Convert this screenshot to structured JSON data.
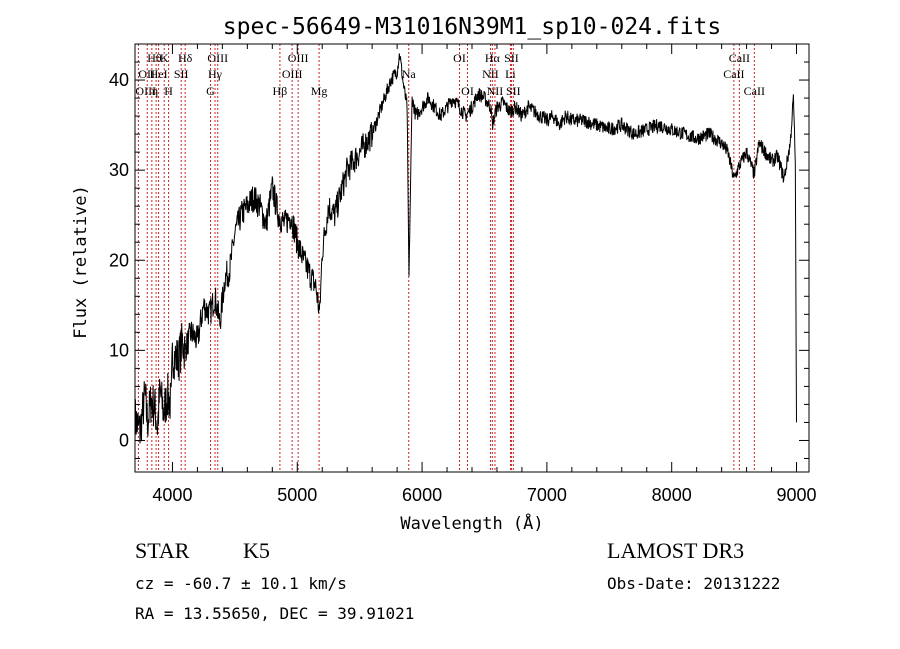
{
  "chart_data": {
    "type": "line",
    "title": "spec-56649-M31016N39M1_sp10-024.fits",
    "xlabel": "Wavelength (Å)",
    "ylabel": "Flux (relative)",
    "xlim": [
      3700,
      9100
    ],
    "ylim": [
      -3.5,
      44
    ],
    "xticks": [
      4000,
      5000,
      6000,
      7000,
      8000,
      9000
    ],
    "yticks": [
      0,
      10,
      20,
      30,
      40
    ],
    "series": [
      {
        "name": "flux",
        "x": [
          3700,
          3740,
          3780,
          3800,
          3830,
          3860,
          3880,
          3900,
          3930,
          3960,
          3990,
          4000,
          4050,
          4080,
          4100,
          4150,
          4200,
          4250,
          4300,
          4340,
          4380,
          4420,
          4460,
          4500,
          4550,
          4600,
          4650,
          4700,
          4750,
          4800,
          4850,
          4900,
          4950,
          5000,
          5050,
          5100,
          5150,
          5180,
          5200,
          5250,
          5300,
          5400,
          5500,
          5600,
          5700,
          5750,
          5800,
          5820,
          5850,
          5880,
          5895,
          5920,
          5950,
          6000,
          6050,
          6100,
          6150,
          6200,
          6250,
          6300,
          6350,
          6400,
          6450,
          6500,
          6550,
          6563,
          6600,
          6650,
          6700,
          6750,
          6800,
          6850,
          6900,
          6950,
          7000,
          7050,
          7100,
          7150,
          7200,
          7300,
          7400,
          7500,
          7600,
          7700,
          7800,
          7900,
          8000,
          8100,
          8200,
          8300,
          8400,
          8450,
          8498,
          8542,
          8600,
          8662,
          8700,
          8750,
          8800,
          8850,
          8900,
          8950,
          8975,
          8990,
          9000
        ],
        "values": [
          2.5,
          1.0,
          5.0,
          2.0,
          4.5,
          3.5,
          1.5,
          5.5,
          3.0,
          5.0,
          4.0,
          9.5,
          9.0,
          11.0,
          10.0,
          12.0,
          11.0,
          15.0,
          14.0,
          16.0,
          13.0,
          18.0,
          19.0,
          23.0,
          25.0,
          26.0,
          27.0,
          26.0,
          24.0,
          28.0,
          25.0,
          24.0,
          25.0,
          22.0,
          20.0,
          18.5,
          17.0,
          14.0,
          21.0,
          26.0,
          25.0,
          30.0,
          32.0,
          34.0,
          38.0,
          40.0,
          41.0,
          43.0,
          39.5,
          37.0,
          18.0,
          38.0,
          36.0,
          37.0,
          38.0,
          37.0,
          36.0,
          37.0,
          38.0,
          37.0,
          36.0,
          37.0,
          38.5,
          38.0,
          37.0,
          35.0,
          37.0,
          37.5,
          36.5,
          37.0,
          36.0,
          37.0,
          36.5,
          36.0,
          35.5,
          36.0,
          35.0,
          36.0,
          35.5,
          35.5,
          35.0,
          34.5,
          35.0,
          34.0,
          34.5,
          35.0,
          34.5,
          34.0,
          33.5,
          34.0,
          33.0,
          32.0,
          29.0,
          30.5,
          32.0,
          29.5,
          33.0,
          32.0,
          31.0,
          31.5,
          29.0,
          33.0,
          38.0,
          31.0,
          2.0
        ]
      }
    ],
    "line_annotations": [
      {
        "label": "Hθ",
        "x": 3798,
        "row": 0,
        "side": "right"
      },
      {
        "label": "OII",
        "x": 3727,
        "row": 1,
        "side": "right"
      },
      {
        "label": "OIII",
        "x": 3869,
        "row": 2,
        "side": "left"
      },
      {
        "label": "HeI",
        "x": 3889,
        "row": 1,
        "side": "center"
      },
      {
        "label": "η",
        "x": 3835,
        "row": 2,
        "side": "right"
      },
      {
        "label": "K",
        "x": 3934,
        "row": 0,
        "side": "center"
      },
      {
        "label": "H",
        "x": 3969,
        "row": 2,
        "side": "center"
      },
      {
        "label": "SII",
        "x": 4070,
        "row": 1,
        "side": "center"
      },
      {
        "label": "Hδ",
        "x": 4102,
        "row": 0,
        "side": "center"
      },
      {
        "label": "OIII",
        "x": 4363,
        "row": 0,
        "side": "center"
      },
      {
        "label": "Hγ",
        "x": 4341,
        "row": 1,
        "side": "center"
      },
      {
        "label": "G",
        "x": 4305,
        "row": 2,
        "side": "center"
      },
      {
        "label": "Hβ",
        "x": 4861,
        "row": 2,
        "side": "center"
      },
      {
        "label": "OIII",
        "x": 5007,
        "row": 0,
        "side": "center"
      },
      {
        "label": "OIII",
        "x": 4959,
        "row": 1,
        "side": "center"
      },
      {
        "label": "Mg",
        "x": 5175,
        "row": 2,
        "side": "center"
      },
      {
        "label": "Na",
        "x": 5893,
        "row": 1,
        "side": "center"
      },
      {
        "label": "OI",
        "x": 6300,
        "row": 0,
        "side": "center"
      },
      {
        "label": "OI",
        "x": 6364,
        "row": 2,
        "side": "center"
      },
      {
        "label": "Hα",
        "x": 6563,
        "row": 0,
        "side": "center"
      },
      {
        "label": "SII",
        "x": 6716,
        "row": 0,
        "side": "center"
      },
      {
        "label": "NII",
        "x": 6548,
        "row": 1,
        "side": "center"
      },
      {
        "label": "Li",
        "x": 6708,
        "row": 1,
        "side": "center"
      },
      {
        "label": "NII",
        "x": 6584,
        "row": 2,
        "side": "center"
      },
      {
        "label": "SII",
        "x": 6731,
        "row": 2,
        "side": "center"
      },
      {
        "label": "CaII",
        "x": 8542,
        "row": 0,
        "side": "center"
      },
      {
        "label": "CaII",
        "x": 8498,
        "row": 1,
        "side": "center"
      },
      {
        "label": "CaII",
        "x": 8662,
        "row": 2,
        "side": "center"
      }
    ]
  },
  "info": {
    "object_class": "STAR",
    "subclass": "K5",
    "survey": "LAMOST DR3",
    "cz": "cz = -60.7 ± 10.1 km/s",
    "obs_date": "Obs-Date: 20131222",
    "coords": "RA =  13.55650, DEC =  39.91021"
  }
}
